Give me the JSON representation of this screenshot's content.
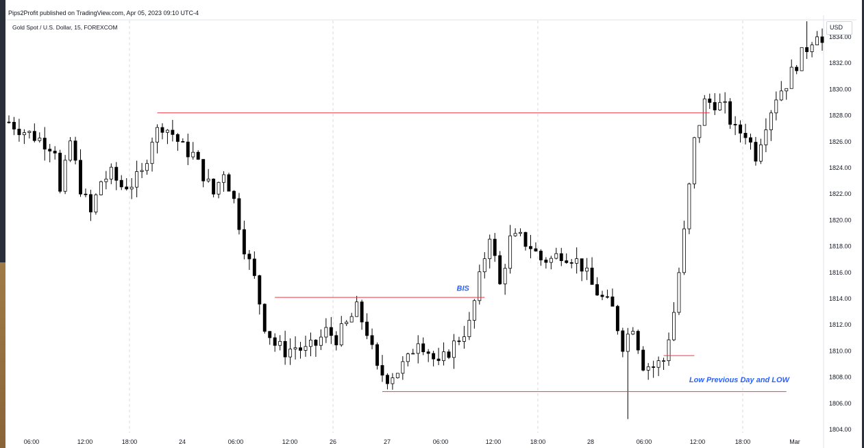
{
  "header": {
    "published": "Pips2Profit published on TradingView.com, Apr 05, 2023 09:10 UTC-4",
    "symbol": "Gold Spot / U.S. Dollar, 15, FOREXCOM"
  },
  "price_scale": {
    "currency": "USD"
  },
  "colors": {
    "candle": "#000000",
    "level_line": "#f23645",
    "annotation": "#2962ff",
    "grid": "#d6d9e0"
  },
  "chart_data": {
    "type": "candlestick",
    "title": "Gold Spot / U.S. Dollar, 15, FOREXCOM",
    "ylim": [
      1803.5,
      1836.0
    ],
    "y_ticks": [
      "1834.00",
      "1832.00",
      "1830.00",
      "1828.00",
      "1826.00",
      "1824.00",
      "1822.00",
      "1820.00",
      "1818.00",
      "1816.00",
      "1814.00",
      "1812.00",
      "1810.00",
      "1808.00",
      "1806.00",
      "1804.00"
    ],
    "x_ticks": [
      "06:00",
      "12:00",
      "18:00",
      "24",
      "06:00",
      "12:00",
      "26",
      "27",
      "06:00",
      "12:00",
      "18:00",
      "28",
      "06:00",
      "12:00",
      "18:00",
      "Mar"
    ],
    "grid_vertical": true,
    "price_path": [
      [
        0,
        1827.5
      ],
      [
        3,
        1826.8
      ],
      [
        6,
        1826.2
      ],
      [
        9,
        1825.5
      ],
      [
        10,
        1822.0
      ],
      [
        12,
        1826.0
      ],
      [
        14,
        1822.5
      ],
      [
        16,
        1820.5
      ],
      [
        18,
        1823.0
      ],
      [
        20,
        1823.5
      ],
      [
        22,
        1822.6
      ],
      [
        24,
        1822.8
      ],
      [
        26,
        1823.5
      ],
      [
        28,
        1826.3
      ],
      [
        30,
        1827.3
      ],
      [
        32,
        1826.6
      ],
      [
        34,
        1825.5
      ],
      [
        36,
        1825.0
      ],
      [
        38,
        1823.5
      ],
      [
        40,
        1822.0
      ],
      [
        42,
        1823.8
      ],
      [
        44,
        1821.5
      ],
      [
        46,
        1818.0
      ],
      [
        48,
        1815.5
      ],
      [
        50,
        1812.0
      ],
      [
        52,
        1810.5
      ],
      [
        54,
        1810.0
      ],
      [
        56,
        1810.3
      ],
      [
        58,
        1810.0
      ],
      [
        60,
        1810.5
      ],
      [
        62,
        1811.5
      ],
      [
        64,
        1811.0
      ],
      [
        66,
        1812.0
      ],
      [
        68,
        1813.2
      ],
      [
        70,
        1811.5
      ],
      [
        72,
        1808.5
      ],
      [
        74,
        1808.0
      ],
      [
        76,
        1808.5
      ],
      [
        78,
        1809.3
      ],
      [
        80,
        1811.0
      ],
      [
        82,
        1810.0
      ],
      [
        84,
        1808.8
      ],
      [
        86,
        1810.0
      ],
      [
        88,
        1811.0
      ],
      [
        90,
        1812.0
      ],
      [
        92,
        1815.5
      ],
      [
        94,
        1819.0
      ],
      [
        96,
        1815.0
      ],
      [
        98,
        1818.5
      ],
      [
        100,
        1818.6
      ],
      [
        102,
        1818.0
      ],
      [
        104,
        1817.0
      ],
      [
        106,
        1817.0
      ],
      [
        108,
        1817.5
      ],
      [
        110,
        1817.2
      ],
      [
        112,
        1816.5
      ],
      [
        114,
        1815.0
      ],
      [
        116,
        1814.0
      ],
      [
        118,
        1813.2
      ],
      [
        120,
        1810.5
      ],
      [
        122,
        1812.0
      ],
      [
        124,
        1809.0
      ],
      [
        126,
        1808.8
      ],
      [
        128,
        1809.3
      ],
      [
        130,
        1813.0
      ],
      [
        132,
        1819.0
      ],
      [
        134,
        1826.0
      ],
      [
        136,
        1829.0
      ],
      [
        138,
        1829.0
      ],
      [
        140,
        1828.5
      ],
      [
        142,
        1826.8
      ],
      [
        144,
        1826.7
      ],
      [
        146,
        1825.0
      ],
      [
        148,
        1827.5
      ],
      [
        150,
        1829.5
      ],
      [
        152,
        1830.5
      ],
      [
        154,
        1832.0
      ],
      [
        156,
        1833.2
      ],
      [
        158,
        1834.5
      ],
      [
        159,
        1833.5
      ]
    ],
    "extremes": {
      "high": 1835.2,
      "low": 1804.8
    },
    "levels": [
      {
        "from_bar": 29,
        "to_bar": 137,
        "price": 1828.2
      },
      {
        "from_bar": 52,
        "to_bar": 93,
        "price": 1814.1
      },
      {
        "from_bar": 73,
        "to_bar": 152,
        "price": 1806.9
      },
      {
        "from_bar": 128,
        "to_bar": 134,
        "price": 1809.65
      }
    ],
    "annotations": [
      {
        "text": "BIS",
        "bar": 90,
        "price": 1814.6
      },
      {
        "text": "Low Previous Day and LOW",
        "bar": 133,
        "price": 1807.6
      }
    ]
  }
}
